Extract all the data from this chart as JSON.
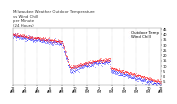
{
  "title": "Milwaukee Weather Outdoor Temperature\nvs Wind Chill\nper Minute\n(24 Hours)",
  "bg_color": "#ffffff",
  "outdoor_color": "#ff0000",
  "windchill_color": "#0000ff",
  "outdoor_label": "Outdoor Temp",
  "windchill_label": "Wind Chill",
  "ylim": [
    -8,
    46
  ],
  "yticks": [
    -5,
    0,
    5,
    10,
    15,
    20,
    25,
    30,
    35,
    40,
    45
  ],
  "num_points": 1440,
  "marker_size": 0.5,
  "legend_fontsize": 2.8,
  "title_fontsize": 2.8,
  "tick_fontsize": 2.5,
  "grid_color": "#aaaaaa",
  "grid_style": ":"
}
